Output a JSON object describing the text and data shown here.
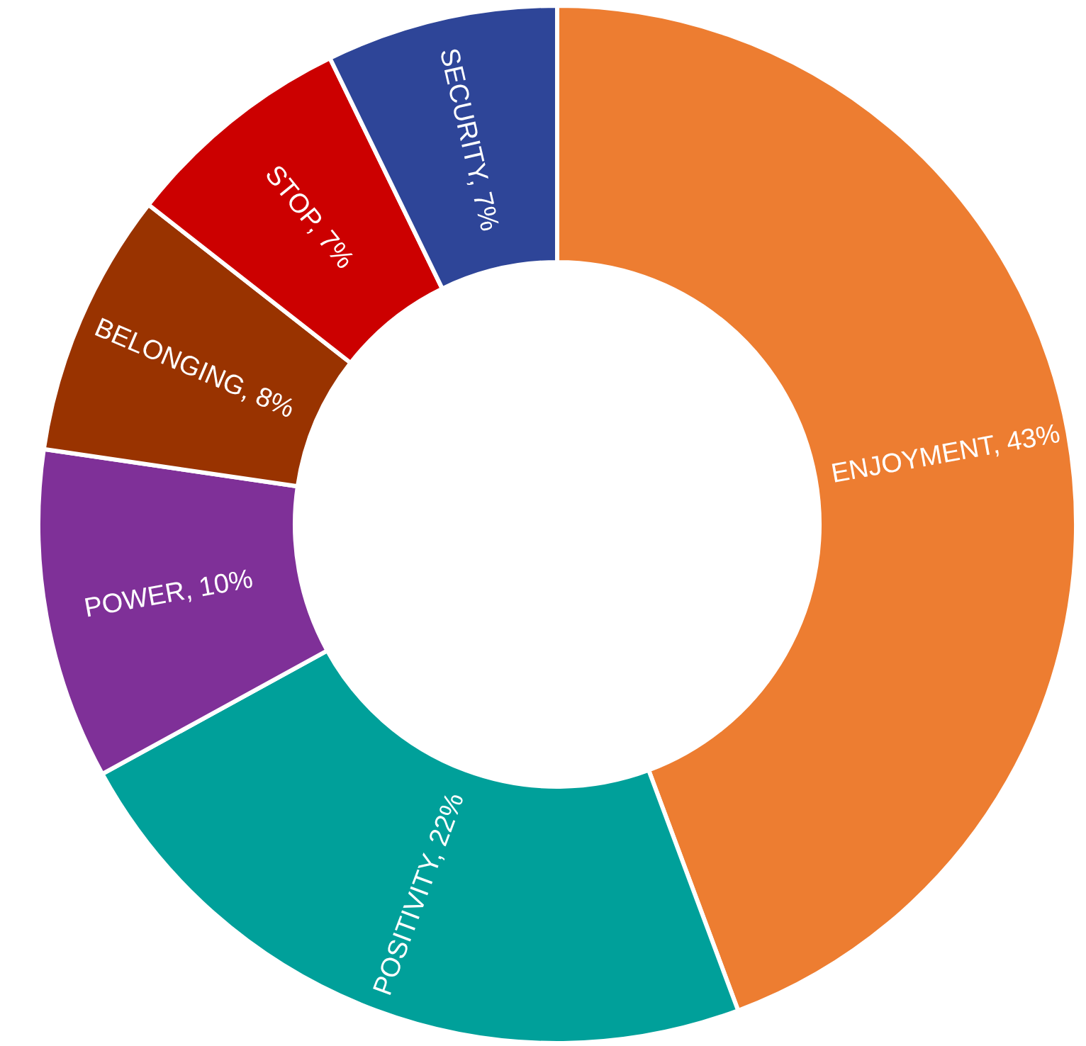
{
  "chart_data": {
    "type": "donut",
    "categories": [
      "ENJOYMENT",
      "POSITIVITY",
      "POWER",
      "BELONGING",
      "STOP",
      "SECURITY"
    ],
    "values": [
      43,
      22,
      10,
      8,
      7,
      7
    ],
    "value_labels": [
      "43%",
      "22%",
      "10%",
      "8%",
      "7%",
      "7%"
    ],
    "colors": [
      "#ed7d31",
      "#00a09a",
      "#7f3098",
      "#993300",
      "#cc0000",
      "#2e4598"
    ],
    "legend": false
  }
}
